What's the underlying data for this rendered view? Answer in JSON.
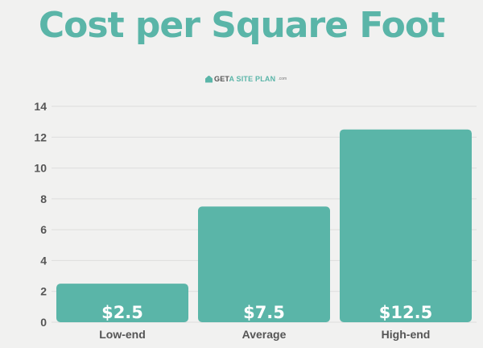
{
  "chart_data": {
    "type": "bar",
    "title": "Cost per Square Foot",
    "categories": [
      "Low-end",
      "Average",
      "High-end"
    ],
    "values": [
      2.5,
      7.5,
      12.5
    ],
    "data_labels": [
      "$2.5",
      "$7.5",
      "$12.5"
    ],
    "ylim": [
      0,
      14
    ],
    "yticks": [
      0,
      2,
      4,
      6,
      8,
      10,
      12,
      14
    ],
    "xlabel": "",
    "ylabel": "",
    "grid": true,
    "legend": "none"
  },
  "logo": {
    "part1": "GET",
    "part2": "A SITE PLAN",
    "suffix": ".com"
  },
  "colors": {
    "bar": "#5ab5a8",
    "title": "#5ab5a8",
    "grid": "#dddddd",
    "axis_text": "#555555",
    "background": "#f1f1f0"
  }
}
